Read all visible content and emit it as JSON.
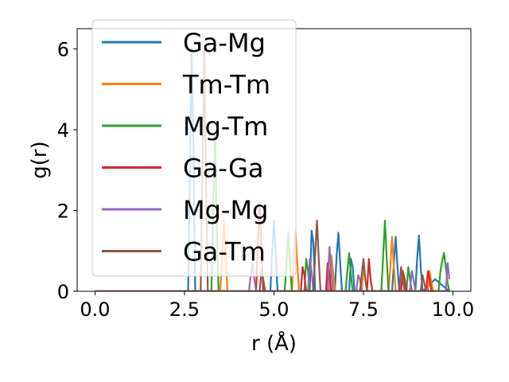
{
  "chart_data": {
    "type": "line",
    "title": "",
    "xlabel": "r (Å)",
    "ylabel": "g(r)",
    "xlim": [
      -0.5,
      10.5
    ],
    "ylim": [
      0,
      6.5
    ],
    "xticks": [
      0.0,
      2.5,
      5.0,
      7.5,
      10.0
    ],
    "xtick_labels": [
      "0.0",
      "2.5",
      "5.0",
      "7.5",
      "10.0"
    ],
    "yticks": [
      0,
      2,
      4,
      6
    ],
    "ytick_labels": [
      "0",
      "2",
      "4",
      "6"
    ],
    "grid": false,
    "legend_position": "top-left",
    "series": [
      {
        "name": "Ga-Mg",
        "color": "#1f77b4",
        "x": [
          0.0,
          2.6,
          2.65,
          2.7,
          2.75,
          2.8,
          2.85,
          4.9,
          4.95,
          5.0,
          5.05,
          5.1,
          6.0,
          6.05,
          6.1,
          6.15,
          6.7,
          6.75,
          6.8,
          6.85,
          6.9,
          7.1,
          7.15,
          7.2,
          7.25,
          8.3,
          8.35,
          8.4,
          8.45,
          8.5,
          8.95,
          9.0,
          9.05,
          9.1,
          9.15,
          9.5,
          9.9
        ],
        "y": [
          0.0,
          0.0,
          3.0,
          6.0,
          3.5,
          0.0,
          0.0,
          0.0,
          1.0,
          1.75,
          0.9,
          0.0,
          0.0,
          1.5,
          1.2,
          0.0,
          0.0,
          0.9,
          1.45,
          0.7,
          0.0,
          0.0,
          0.8,
          0.6,
          0.0,
          0.0,
          0.7,
          1.35,
          0.6,
          0.0,
          0.0,
          0.8,
          1.38,
          0.6,
          0.0,
          0.3,
          0.0
        ]
      },
      {
        "name": "Tm-Tm",
        "color": "#ff7f0e",
        "x": [
          0.0,
          3.5,
          3.55,
          3.6,
          3.65,
          3.7,
          5.5,
          5.55,
          5.6,
          5.65,
          5.7,
          6.55,
          6.6,
          6.65,
          6.7,
          7.45,
          7.5,
          7.55,
          7.6,
          8.2,
          8.25,
          8.3,
          8.35,
          8.4,
          9.3,
          9.35,
          9.4,
          9.45,
          9.9
        ],
        "y": [
          0.0,
          0.0,
          0.9,
          1.75,
          0.8,
          0.0,
          0.0,
          0.8,
          1.5,
          0.7,
          0.0,
          0.0,
          0.9,
          0.5,
          0.0,
          0.0,
          0.6,
          0.3,
          0.0,
          0.0,
          0.6,
          1.35,
          0.6,
          0.0,
          0.0,
          0.5,
          0.2,
          0.0,
          0.0
        ]
      },
      {
        "name": "Mg-Tm",
        "color": "#2ca02c",
        "x": [
          0.0,
          3.25,
          3.3,
          3.35,
          3.4,
          3.45,
          5.3,
          5.35,
          5.4,
          5.45,
          5.5,
          5.85,
          5.9,
          5.95,
          6.0,
          7.0,
          7.05,
          7.1,
          7.15,
          7.2,
          8.0,
          8.05,
          8.1,
          8.15,
          8.2,
          8.7,
          8.75,
          8.8,
          8.85,
          9.6,
          9.65,
          9.7,
          9.75,
          9.8,
          9.85,
          9.9
        ],
        "y": [
          0.0,
          0.0,
          2.0,
          3.9,
          1.8,
          0.0,
          0.0,
          0.7,
          1.45,
          0.6,
          0.0,
          0.0,
          0.8,
          0.5,
          0.0,
          0.0,
          0.5,
          0.95,
          0.4,
          0.0,
          0.0,
          0.9,
          1.75,
          0.8,
          0.0,
          0.0,
          0.6,
          0.3,
          0.0,
          0.0,
          0.5,
          0.75,
          0.95,
          0.6,
          0.2,
          0.0
        ]
      },
      {
        "name": "Ga-Ga",
        "color": "#d62728",
        "x": [
          0.0,
          4.5,
          4.55,
          4.6,
          4.65,
          4.7,
          5.75,
          5.8,
          5.85,
          5.9,
          6.45,
          6.5,
          6.55,
          6.6,
          7.6,
          7.65,
          7.7,
          7.75,
          8.55,
          8.6,
          8.65,
          8.7,
          9.25,
          9.3,
          9.35,
          9.4,
          9.9
        ],
        "y": [
          0.0,
          0.0,
          1.2,
          2.2,
          1.0,
          0.0,
          0.0,
          0.6,
          0.4,
          0.0,
          0.0,
          0.7,
          0.4,
          0.0,
          0.0,
          0.8,
          0.3,
          0.0,
          0.0,
          0.5,
          0.3,
          0.0,
          0.0,
          0.5,
          0.3,
          0.0,
          0.0
        ]
      },
      {
        "name": "Mg-Mg",
        "color": "#9467bd",
        "x": [
          0.0,
          4.3,
          4.35,
          4.4,
          4.45,
          4.5,
          5.95,
          6.0,
          6.05,
          6.1,
          6.5,
          6.55,
          6.6,
          6.65,
          7.3,
          7.35,
          7.4,
          7.45,
          8.8,
          8.85,
          8.9,
          8.95,
          9.8,
          9.85,
          9.9
        ],
        "y": [
          0.0,
          0.0,
          0.4,
          0.7,
          0.3,
          0.0,
          0.0,
          0.8,
          0.5,
          0.0,
          0.0,
          1.1,
          0.5,
          0.0,
          0.0,
          0.4,
          0.3,
          0.0,
          0.0,
          0.5,
          0.3,
          0.0,
          0.0,
          0.7,
          0.3
        ]
      },
      {
        "name": "Ga-Tm",
        "color": "#8c564b",
        "x": [
          0.0,
          2.95,
          3.0,
          3.05,
          3.1,
          3.15,
          4.6,
          4.65,
          4.7,
          4.75,
          6.1,
          6.15,
          6.2,
          6.25,
          6.3,
          7.4,
          7.45,
          7.5,
          7.55,
          7.6,
          8.5,
          8.55,
          8.6,
          8.65,
          9.1,
          9.15,
          9.2,
          9.25,
          9.9
        ],
        "y": [
          0.0,
          0.0,
          3.0,
          5.95,
          2.8,
          0.0,
          0.0,
          0.5,
          0.3,
          0.0,
          0.0,
          0.9,
          1.75,
          0.8,
          0.0,
          0.0,
          0.4,
          0.8,
          0.3,
          0.0,
          0.0,
          0.6,
          0.3,
          0.0,
          0.0,
          0.4,
          0.2,
          0.0,
          0.0
        ]
      }
    ]
  }
}
